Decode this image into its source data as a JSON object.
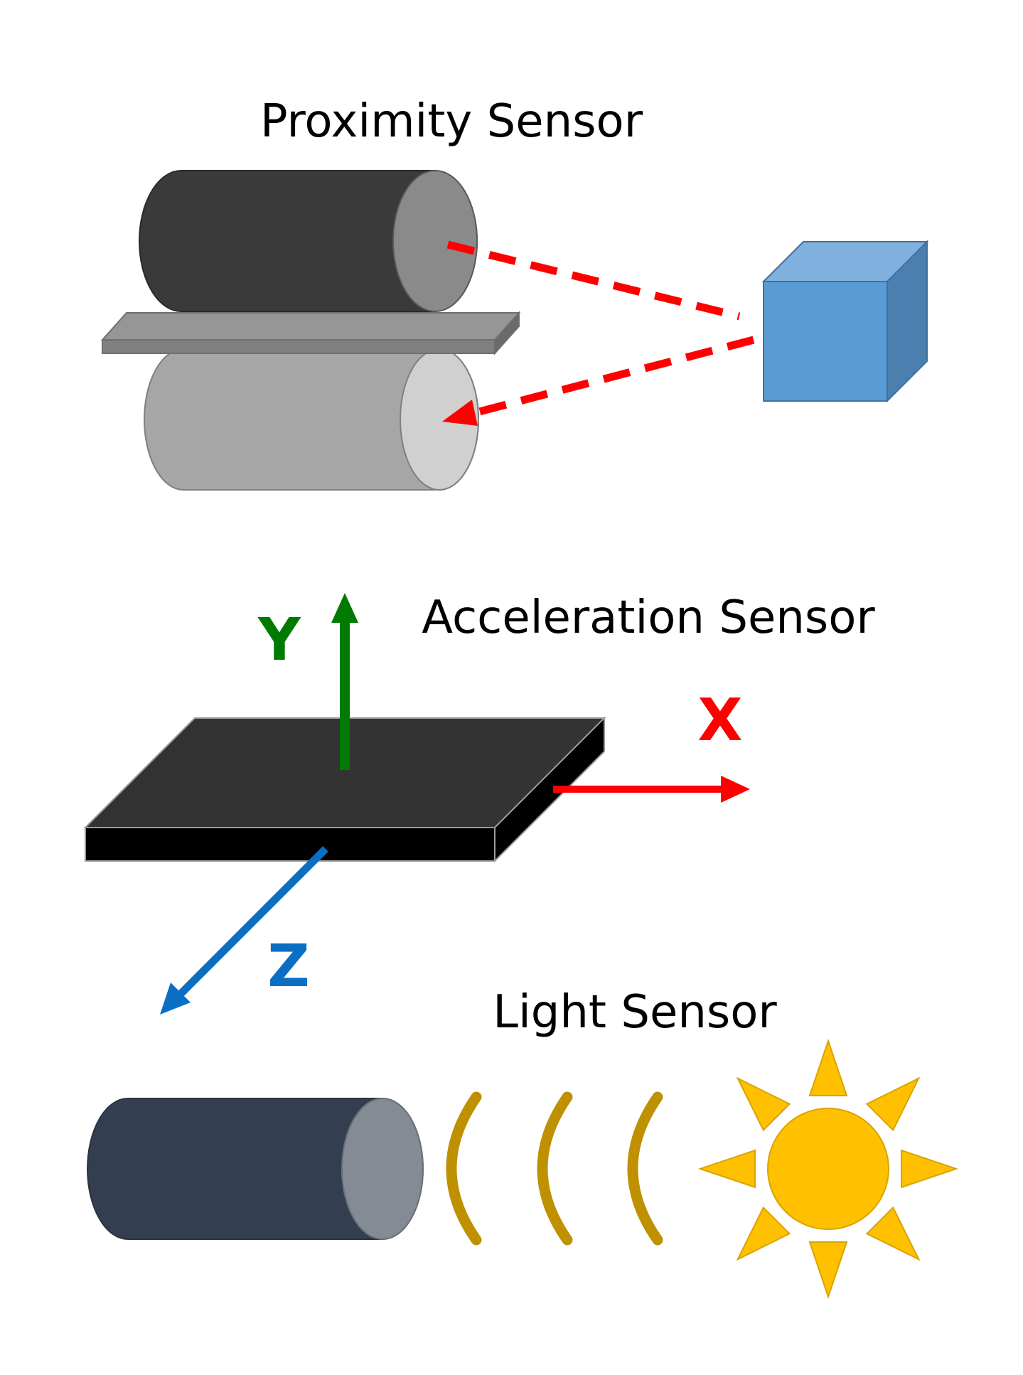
{
  "labels": {
    "proximity_title": "Proximity Sensor",
    "acceleration_title": "Acceleration Sensor",
    "light_title": "Light Sensor",
    "axis_x": "X",
    "axis_y": "Y",
    "axis_z": "Z"
  },
  "colors": {
    "axis_x": "#ff0000",
    "axis_y": "#007a00",
    "axis_z": "#0a6fc2",
    "beam": "#ff0000",
    "cube_front": "#5b9bd5",
    "cube_top": "#7fb0de",
    "cube_side": "#4a7fb0",
    "board_top": "#333333",
    "board_edge": "#000000",
    "roller_dark": "#3a3a3a",
    "roller_dark_face": "#8a8a8a",
    "roller_light": "#a6a6a6",
    "roller_light_face": "#d0d0d0",
    "plate": "#8c8c8c",
    "sensor_body": "#333f50",
    "sensor_face": "#848b94",
    "light_waves": "#bf9000",
    "sun": "#ffc000",
    "sun_outline": "#d9a400"
  },
  "icons": {
    "rollers": "rollers-icon",
    "target_cube": "cube-icon",
    "board": "accelerometer-board-icon",
    "light_sensor": "cylinder-sensor-icon",
    "waves": "light-waves-icon",
    "sun": "sun-icon"
  }
}
